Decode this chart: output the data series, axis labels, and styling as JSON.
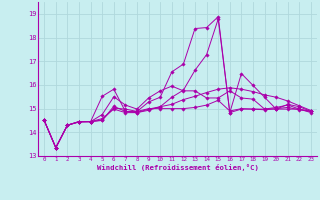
{
  "xlabel": "Windchill (Refroidissement éolien,°C)",
  "bg_color": "#c8eef0",
  "grid_color": "#b0d8dc",
  "line_color": "#aa00aa",
  "xlim": [
    -0.5,
    23.5
  ],
  "ylim": [
    13.0,
    19.5
  ],
  "yticks": [
    13,
    14,
    15,
    16,
    17,
    18,
    19
  ],
  "xticks": [
    0,
    1,
    2,
    3,
    4,
    5,
    6,
    7,
    8,
    9,
    10,
    11,
    12,
    13,
    14,
    15,
    16,
    17,
    18,
    19,
    20,
    21,
    22,
    23
  ],
  "lines": [
    {
      "x": [
        0,
        1,
        2,
        3,
        4,
        5,
        6,
        7,
        8,
        9,
        10,
        11,
        12,
        13,
        14,
        15,
        16,
        17,
        18,
        19,
        20,
        21,
        22,
        23
      ],
      "y": [
        14.5,
        13.35,
        14.3,
        14.45,
        14.45,
        14.5,
        15.1,
        14.88,
        14.88,
        15.0,
        15.0,
        15.0,
        15.0,
        15.05,
        15.15,
        15.35,
        14.9,
        15.0,
        14.98,
        14.95,
        15.0,
        15.05,
        14.95,
        14.88
      ]
    },
    {
      "x": [
        0,
        1,
        2,
        3,
        4,
        5,
        6,
        7,
        8,
        9,
        10,
        11,
        12,
        13,
        14,
        15,
        16,
        17,
        18,
        19,
        20,
        21,
        22,
        23
      ],
      "y": [
        14.5,
        13.35,
        14.3,
        14.45,
        14.45,
        14.75,
        15.5,
        15.15,
        14.98,
        15.45,
        15.75,
        15.95,
        15.75,
        15.75,
        15.45,
        15.45,
        15.75,
        15.45,
        15.4,
        14.98,
        15.05,
        15.15,
        14.98,
        14.88
      ]
    },
    {
      "x": [
        0,
        1,
        2,
        3,
        4,
        5,
        6,
        7,
        8,
        9,
        10,
        11,
        12,
        13,
        14,
        15,
        16,
        17,
        18,
        19,
        20,
        21,
        22,
        23
      ],
      "y": [
        14.5,
        13.35,
        14.3,
        14.45,
        14.45,
        14.58,
        14.98,
        14.83,
        14.83,
        14.98,
        15.08,
        15.18,
        15.38,
        15.52,
        15.68,
        15.82,
        15.88,
        15.82,
        15.72,
        15.58,
        15.48,
        15.32,
        15.12,
        14.92
      ]
    },
    {
      "x": [
        0,
        1,
        2,
        3,
        4,
        5,
        6,
        7,
        8,
        9,
        10,
        11,
        12,
        13,
        14,
        15,
        16,
        17,
        18,
        19,
        20,
        21,
        22,
        23
      ],
      "y": [
        14.5,
        13.35,
        14.3,
        14.43,
        14.45,
        14.52,
        15.02,
        14.98,
        14.88,
        15.28,
        15.48,
        16.55,
        16.88,
        18.38,
        18.42,
        18.88,
        14.83,
        16.48,
        15.98,
        15.48,
        14.98,
        15.18,
        15.08,
        14.88
      ]
    },
    {
      "x": [
        0,
        1,
        2,
        3,
        4,
        5,
        6,
        7,
        8,
        9,
        10,
        11,
        12,
        13,
        14,
        15,
        16,
        17,
        18,
        19,
        20,
        21,
        22,
        23
      ],
      "y": [
        14.5,
        13.35,
        14.3,
        14.45,
        14.45,
        15.52,
        15.82,
        14.88,
        14.83,
        14.93,
        15.08,
        15.48,
        15.78,
        16.62,
        17.28,
        18.78,
        14.83,
        14.98,
        14.98,
        14.98,
        14.98,
        14.98,
        14.98,
        14.83
      ]
    }
  ]
}
